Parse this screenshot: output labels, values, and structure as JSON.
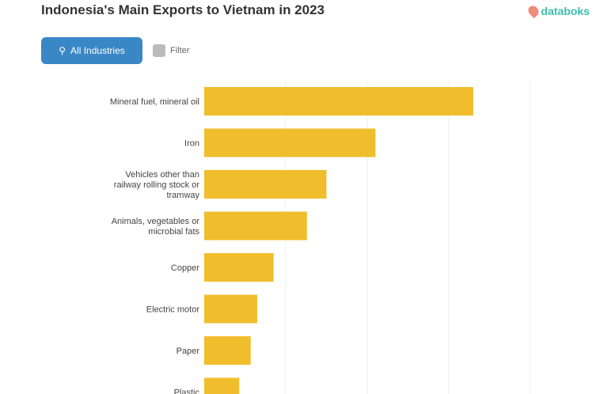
{
  "header": {
    "title": "Indonesia's Main Exports to Vietnam in 2023",
    "logo": "databoks",
    "btn_primary": "All Industries",
    "btn_secondary": "Filter"
  },
  "colors": {
    "bar": "#f0bd2c",
    "button": "#3a87c6",
    "logo": "#3cbfb0"
  },
  "chart_data": {
    "type": "bar",
    "orientation": "horizontal",
    "grid": true,
    "categories": [
      "Mineral fuel, mineral oil",
      "Iron",
      "Vehicles other than railway rolling stock or tramway",
      "Animals, vegetables or microbial fats",
      "Copper",
      "Electric motor",
      "Paper",
      "Plastic"
    ],
    "values": [
      3.3,
      2.1,
      1.5,
      1.26,
      0.85,
      0.65,
      0.57,
      0.43
    ],
    "xlim": [
      0,
      4
    ]
  }
}
